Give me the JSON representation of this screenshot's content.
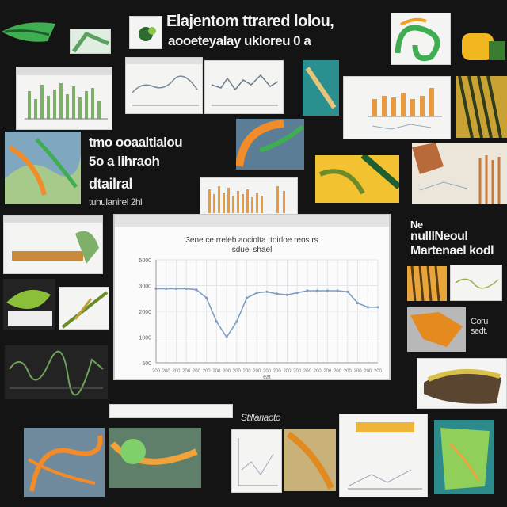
{
  "collage": {
    "headline_line1": "Elajentom ttrared lolou,",
    "headline_line2": "aooeteyalay ukloreu 0 a",
    "left_caption_1": "tmo ooaaltialou",
    "left_caption_2": "5o a lihraoh",
    "left_caption_3": "dtailral",
    "left_caption_4": "tuhulanirel 2hl",
    "right_caption_1": "Ne",
    "right_caption_2": "nulllNeoul",
    "right_caption_3": "Martenael kodl",
    "side_note": "Coru sedt.",
    "footer_note": "Stillariaoto"
  },
  "main_chart": {
    "title_line1": "3ene ce rreleb aociolta ttoirloe reos rs",
    "title_line2": "sduel shael",
    "y_ticks": [
      "5000",
      "3000",
      "2000",
      "1000",
      "500"
    ],
    "x_tick_label": "200",
    "x_axis_title": "eat"
  },
  "chart_data": {
    "type": "line",
    "title": "",
    "xlabel": "",
    "ylabel": "",
    "x": [
      1,
      2,
      3,
      4,
      5,
      6,
      7,
      8,
      9,
      10,
      11,
      12,
      13,
      14,
      15,
      16,
      17,
      18,
      19,
      20,
      21,
      22,
      23
    ],
    "series": [
      {
        "values": [
          72,
          72,
          72,
          72,
          71,
          63,
          40,
          25,
          40,
          63,
          68,
          69,
          67,
          66,
          68,
          70,
          70,
          70,
          70,
          69,
          58,
          54,
          54
        ]
      }
    ],
    "ylim": [
      0,
      100
    ],
    "grid": true,
    "legend": "none",
    "line_color": "#7f9ec2"
  }
}
